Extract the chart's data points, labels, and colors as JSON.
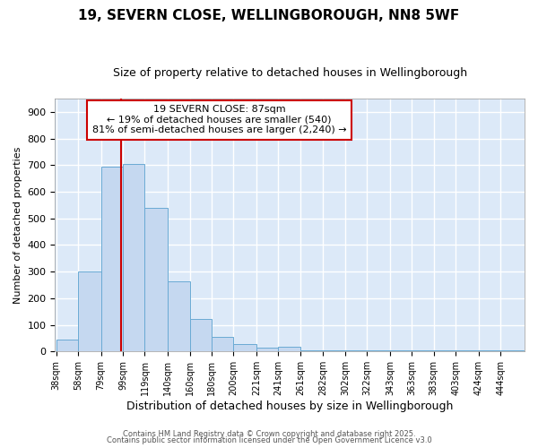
{
  "title_line1": "19, SEVERN CLOSE, WELLINGBOROUGH, NN8 5WF",
  "title_line2": "Size of property relative to detached houses in Wellingborough",
  "xlabel": "Distribution of detached houses by size in Wellingborough",
  "ylabel": "Number of detached properties",
  "bar_color": "#c5d8f0",
  "bar_edge_color": "#6aaad4",
  "fig_bg_color": "#ffffff",
  "axes_bg_color": "#dce9f8",
  "grid_color": "#ffffff",
  "vline_color": "#cc0000",
  "vline_x": 87,
  "annotation_text": "19 SEVERN CLOSE: 87sqm\n← 19% of detached houses are smaller (540)\n81% of semi-detached houses are larger (2,240) →",
  "annotation_box_color": "white",
  "annotation_box_edge": "#cc0000",
  "footer_line1": "Contains HM Land Registry data © Crown copyright and database right 2025.",
  "footer_line2": "Contains public sector information licensed under the Open Government Licence v3.0",
  "categories": [
    "38sqm",
    "58sqm",
    "79sqm",
    "99sqm",
    "119sqm",
    "140sqm",
    "160sqm",
    "180sqm",
    "200sqm",
    "221sqm",
    "241sqm",
    "261sqm",
    "282sqm",
    "302sqm",
    "322sqm",
    "343sqm",
    "363sqm",
    "383sqm",
    "403sqm",
    "424sqm",
    "444sqm"
  ],
  "values": [
    45,
    300,
    693,
    706,
    540,
    265,
    122,
    55,
    28,
    15,
    18,
    5,
    3,
    5,
    5,
    3,
    3,
    3,
    3,
    3,
    5
  ],
  "ylim": [
    0,
    950
  ],
  "yticks": [
    0,
    100,
    200,
    300,
    400,
    500,
    600,
    700,
    800,
    900
  ],
  "bin_edges": [
    28,
    48,
    69,
    89,
    109,
    130,
    150,
    170,
    190,
    211,
    231,
    251,
    272,
    292,
    312,
    333,
    353,
    373,
    393,
    414,
    434,
    455
  ]
}
